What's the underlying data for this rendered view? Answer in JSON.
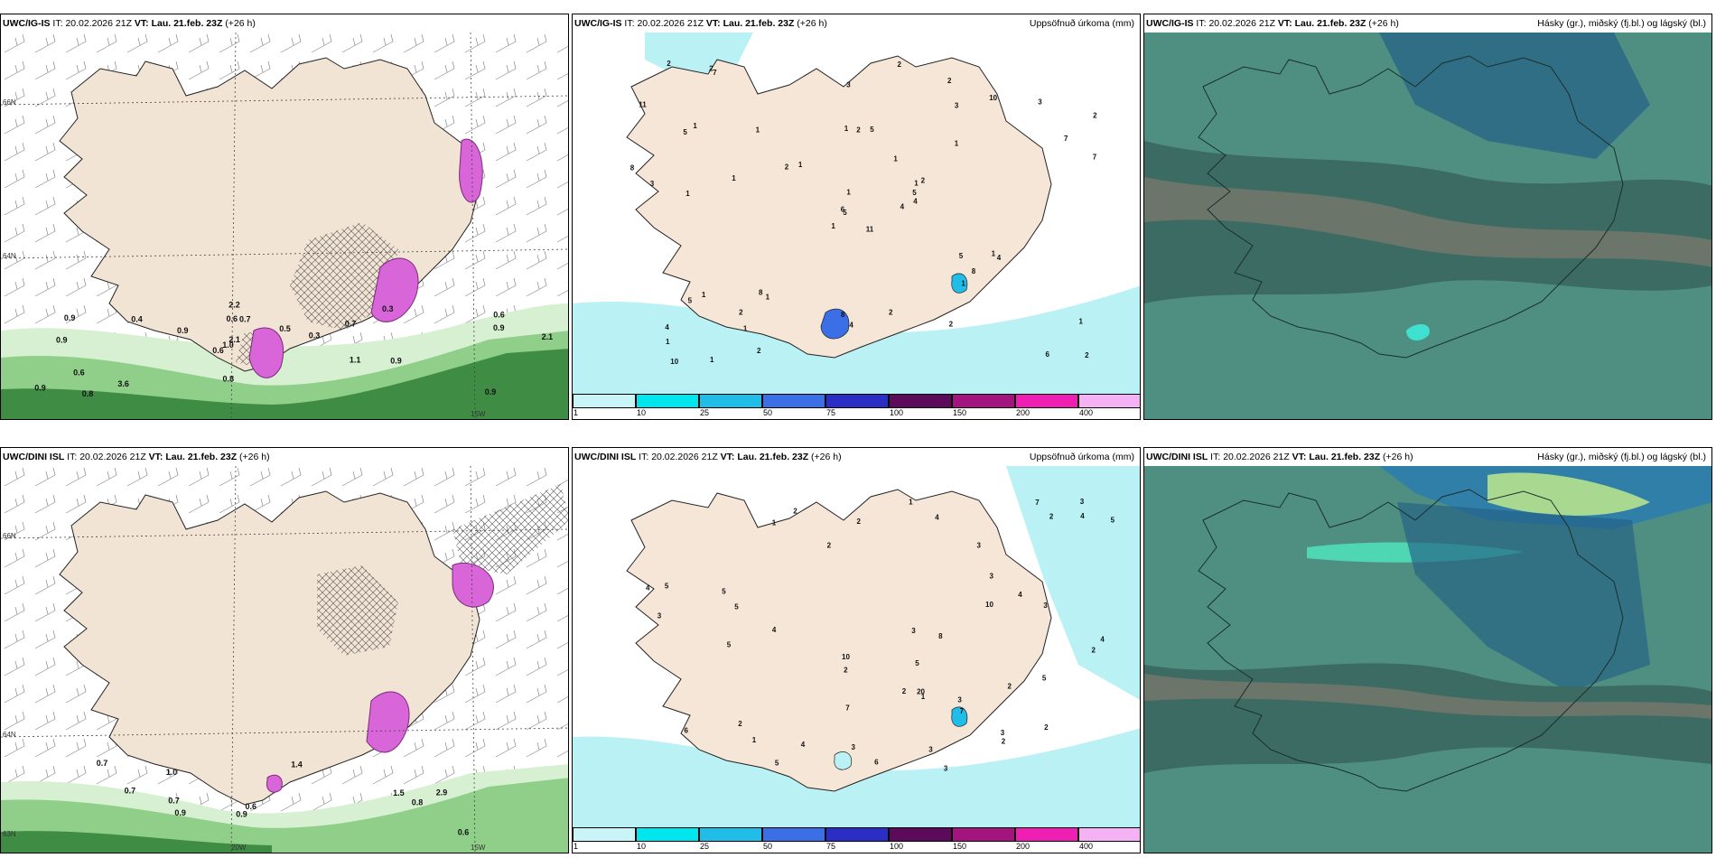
{
  "panels": [
    {
      "model": "UWC/IG-IS",
      "it_label": "IT:",
      "it": "20.02.2026 21Z",
      "vt_label": "VT:",
      "vt": "Lau. 21.feb. 23Z",
      "lead": "(+26 h)",
      "title": ""
    },
    {
      "model": "UWC/IG-IS",
      "it_label": "IT:",
      "it": "20.02.2026 21Z",
      "vt_label": "VT:",
      "vt": "Lau. 21.feb. 23Z",
      "lead": "(+26 h)",
      "title": "Uppsöfnuð úrkoma (mm)"
    },
    {
      "model": "UWC/IG-IS",
      "it_label": "IT:",
      "it": "20.02.2026 21Z",
      "vt_label": "VT:",
      "vt": "Lau. 21.feb. 23Z",
      "lead": "(+26 h)",
      "title": "Hásky (gr.), miðský (fj.bl.) og lágský (bl.)"
    },
    {
      "model": "UWC/DINI ISL",
      "it_label": "IT:",
      "it": "20.02.2026 21Z",
      "vt_label": "VT:",
      "vt": "Lau. 21.feb. 23Z",
      "lead": "(+26 h)",
      "title": ""
    },
    {
      "model": "UWC/DINI ISL",
      "it_label": "IT:",
      "it": "20.02.2026 21Z",
      "vt_label": "VT:",
      "vt": "Lau. 21.feb. 23Z",
      "lead": "(+26 h)",
      "title": "Uppsöfnuð úrkoma (mm)"
    },
    {
      "model": "UWC/DINI ISL",
      "it_label": "IT:",
      "it": "20.02.2026 21Z",
      "vt_label": "VT:",
      "vt": "Lau. 21.feb. 23Z",
      "lead": "(+26 h)",
      "title": "Hásky (gr.), miðský (fj.bl.) og lágský (bl.)"
    }
  ],
  "colorbar": {
    "ticks": [
      "1",
      "10",
      "25",
      "50",
      "75",
      "100",
      "150",
      "200",
      "400"
    ],
    "colors": [
      "#c8f5f8",
      "#00e6ee",
      "#1fbde8",
      "#3b6fe6",
      "#2a2ec4",
      "#5c0a5a",
      "#a4147e",
      "#ef1fb4",
      "#f4b2f4"
    ]
  },
  "grid_labels": {
    "lat_top": "66N",
    "lat_mid": "64N",
    "lat_low": "63N",
    "lon_left": "20W",
    "lon_right": "15W"
  },
  "wind_labels_top": [
    "0.9",
    "0.9",
    "0.6",
    "0.6",
    "0.7",
    "0.8",
    "0.6",
    "0.5",
    "0.6",
    "0.9",
    "0.9",
    "3.6",
    "0.7",
    "0.3",
    "0.9",
    "0.9",
    "2.2",
    "2.1",
    "1.1",
    "0.9",
    "1.0",
    "0.8",
    "2.1",
    "0.4",
    "0.3"
  ],
  "wind_labels_bottom": [
    "0.6",
    "0.7",
    "0.7",
    "0.8",
    "0.6",
    "1.0",
    "0.9",
    "0.7",
    "0.9",
    "1.5",
    "2.9",
    "1.4"
  ],
  "precip_labels_top": [
    "11",
    "5",
    "5",
    "4",
    "1",
    "1",
    "2",
    "5",
    "3",
    "4",
    "7",
    "2",
    "1",
    "2",
    "1",
    "1",
    "1",
    "1",
    "1",
    "1",
    "1",
    "1",
    "1",
    "2",
    "2",
    "4",
    "1",
    "3",
    "3",
    "5",
    "7",
    "6",
    "8",
    "1",
    "1",
    "10",
    "8",
    "6",
    "1",
    "1",
    "2",
    "2",
    "1",
    "1",
    "2",
    "8",
    "5",
    "10",
    "4",
    "4",
    "5",
    "7",
    "11",
    "8",
    "2",
    "2",
    "2",
    "2",
    "2",
    "3"
  ],
  "precip_labels_bottom": [
    "3",
    "1",
    "2",
    "5",
    "4",
    "3",
    "2",
    "4",
    "2",
    "1",
    "6",
    "4",
    "10",
    "20",
    "10",
    "7",
    "3",
    "2",
    "2",
    "3",
    "3",
    "1",
    "5",
    "2",
    "8",
    "3",
    "5",
    "5",
    "6",
    "2",
    "7",
    "3",
    "3",
    "4",
    "2",
    "3",
    "1",
    "5",
    "4",
    "3",
    "2",
    "3",
    "5",
    "2",
    "4",
    "5",
    "2",
    "7",
    "5",
    "4"
  ]
}
